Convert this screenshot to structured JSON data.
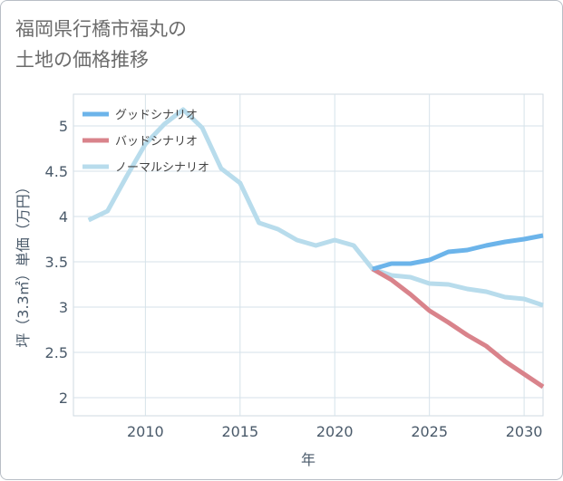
{
  "title": {
    "line1": "福岡県行橋市福丸の",
    "line2": "土地の価格推移"
  },
  "colors": {
    "good": "#6cb4ea",
    "bad": "#d9838b",
    "normal": "#b8dcec",
    "grid": "#d6e2ea",
    "axis": "#4a5a6a"
  },
  "chart_data": {
    "type": "line",
    "title": "福岡県行橋市福丸の土地の価格推移",
    "xlabel": "年",
    "ylabel": "坪（3.3㎡）単価（万円）",
    "xlim": [
      2006.2,
      2031
    ],
    "ylim": [
      1.8,
      5.35
    ],
    "xticks": [
      2010,
      2015,
      2020,
      2025,
      2030
    ],
    "xtick_labels": [
      "2010",
      "2015",
      "2020",
      "2025",
      "2030"
    ],
    "yticks": [
      2,
      2.5,
      3,
      3.5,
      4,
      4.5,
      5
    ],
    "ytick_labels": [
      "2",
      "2.5",
      "3",
      "3.5",
      "4",
      "4.5",
      "5"
    ],
    "grid": true,
    "legend_position": "top-left",
    "series": [
      {
        "name": "グッドシナリオ",
        "color": "#6cb4ea",
        "x": [
          2022,
          2023,
          2024,
          2025,
          2026,
          2027,
          2028,
          2029,
          2030,
          2031
        ],
        "values": [
          3.42,
          3.48,
          3.48,
          3.52,
          3.61,
          3.63,
          3.68,
          3.72,
          3.75,
          3.79
        ]
      },
      {
        "name": "バッドシナリオ",
        "color": "#d9838b",
        "x": [
          2022,
          2023,
          2024,
          2025,
          2026,
          2027,
          2028,
          2029,
          2030,
          2031
        ],
        "values": [
          3.42,
          3.3,
          3.14,
          2.96,
          2.83,
          2.69,
          2.57,
          2.4,
          2.26,
          2.12
        ]
      },
      {
        "name": "ノーマルシナリオ",
        "color": "#b8dcec",
        "x": [
          2007,
          2008,
          2009,
          2010,
          2011,
          2012,
          2013,
          2014,
          2015,
          2016,
          2017,
          2018,
          2019,
          2020,
          2021,
          2022,
          2023,
          2024,
          2025,
          2026,
          2027,
          2028,
          2029,
          2030,
          2031
        ],
        "values": [
          3.96,
          4.06,
          4.44,
          4.8,
          5.02,
          5.18,
          4.98,
          4.53,
          4.37,
          3.93,
          3.86,
          3.74,
          3.68,
          3.74,
          3.68,
          3.42,
          3.35,
          3.33,
          3.26,
          3.25,
          3.2,
          3.17,
          3.11,
          3.09,
          3.02
        ]
      }
    ]
  }
}
